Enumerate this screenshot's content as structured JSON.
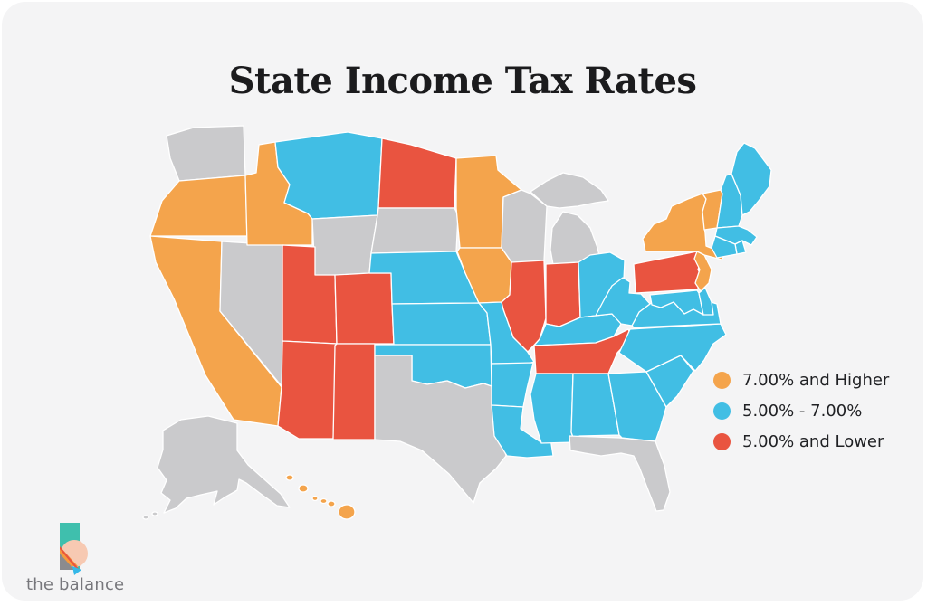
{
  "title": "State Income Tax Rates",
  "legend": {
    "items": [
      {
        "key": "high",
        "label": "7.00% and Higher"
      },
      {
        "key": "mid",
        "label": "5.00% - 7.00%"
      },
      {
        "key": "low",
        "label": "5.00% and Lower"
      }
    ]
  },
  "colors": {
    "high": "#F4A44C",
    "mid": "#41BEE4",
    "low": "#E95440",
    "none": "#CACACC",
    "card_background": "#F4F4F5",
    "state_border": "#FFFFFF",
    "title_text": "#1B1B1D",
    "legend_text": "#202124",
    "logo_text": "#77777C",
    "logo_teal": "#3FBFAD",
    "logo_peach": "#F7C9B2",
    "logo_orange": "#F59A3E",
    "logo_red": "#E9543F",
    "logo_gray": "#8B8B8E",
    "logo_cyan": "#35B8E8"
  },
  "logo": {
    "text": "the balance"
  },
  "map": {
    "states": [
      {
        "id": "WA",
        "name": "Washington",
        "category": "none"
      },
      {
        "id": "OR",
        "name": "Oregon",
        "category": "high"
      },
      {
        "id": "CA",
        "name": "California",
        "category": "high"
      },
      {
        "id": "NV",
        "name": "Nevada",
        "category": "none"
      },
      {
        "id": "ID",
        "name": "Idaho",
        "category": "high"
      },
      {
        "id": "MT",
        "name": "Montana",
        "category": "mid"
      },
      {
        "id": "WY",
        "name": "Wyoming",
        "category": "none"
      },
      {
        "id": "UT",
        "name": "Utah",
        "category": "low"
      },
      {
        "id": "CO",
        "name": "Colorado",
        "category": "low"
      },
      {
        "id": "AZ",
        "name": "Arizona",
        "category": "low"
      },
      {
        "id": "NM",
        "name": "New Mexico",
        "category": "low"
      },
      {
        "id": "ND",
        "name": "North Dakota",
        "category": "low"
      },
      {
        "id": "SD",
        "name": "South Dakota",
        "category": "none"
      },
      {
        "id": "NE",
        "name": "Nebraska",
        "category": "mid"
      },
      {
        "id": "KS",
        "name": "Kansas",
        "category": "mid"
      },
      {
        "id": "OK",
        "name": "Oklahoma",
        "category": "mid"
      },
      {
        "id": "TX",
        "name": "Texas",
        "category": "none"
      },
      {
        "id": "MN",
        "name": "Minnesota",
        "category": "high"
      },
      {
        "id": "IA",
        "name": "Iowa",
        "category": "high"
      },
      {
        "id": "MO",
        "name": "Missouri",
        "category": "mid"
      },
      {
        "id": "AR",
        "name": "Arkansas",
        "category": "mid"
      },
      {
        "id": "LA",
        "name": "Louisiana",
        "category": "mid"
      },
      {
        "id": "WI",
        "name": "Wisconsin",
        "category": "none"
      },
      {
        "id": "IL",
        "name": "Illinois",
        "category": "low"
      },
      {
        "id": "MI",
        "name": "Michigan",
        "category": "none"
      },
      {
        "id": "IN",
        "name": "Indiana",
        "category": "low"
      },
      {
        "id": "OH",
        "name": "Ohio",
        "category": "mid"
      },
      {
        "id": "KY",
        "name": "Kentucky",
        "category": "mid"
      },
      {
        "id": "TN",
        "name": "Tennessee",
        "category": "low"
      },
      {
        "id": "MS",
        "name": "Mississippi",
        "category": "mid"
      },
      {
        "id": "AL",
        "name": "Alabama",
        "category": "mid"
      },
      {
        "id": "GA",
        "name": "Georgia",
        "category": "mid"
      },
      {
        "id": "FL",
        "name": "Florida",
        "category": "none"
      },
      {
        "id": "SC",
        "name": "South Carolina",
        "category": "mid"
      },
      {
        "id": "NC",
        "name": "North Carolina",
        "category": "mid"
      },
      {
        "id": "VA",
        "name": "Virginia",
        "category": "mid"
      },
      {
        "id": "WV",
        "name": "West Virginia",
        "category": "mid"
      },
      {
        "id": "MD",
        "name": "Maryland",
        "category": "mid"
      },
      {
        "id": "DE",
        "name": "Delaware",
        "category": "mid"
      },
      {
        "id": "PA",
        "name": "Pennsylvania",
        "category": "low"
      },
      {
        "id": "NY",
        "name": "New York",
        "category": "high"
      },
      {
        "id": "NJ",
        "name": "New Jersey",
        "category": "high"
      },
      {
        "id": "VT",
        "name": "Vermont",
        "category": "high"
      },
      {
        "id": "NH",
        "name": "New Hampshire",
        "category": "mid"
      },
      {
        "id": "ME",
        "name": "Maine",
        "category": "mid"
      },
      {
        "id": "MA",
        "name": "Massachusetts",
        "category": "mid"
      },
      {
        "id": "RI",
        "name": "Rhode Island",
        "category": "mid"
      },
      {
        "id": "CT",
        "name": "Connecticut",
        "category": "mid"
      },
      {
        "id": "AK",
        "name": "Alaska",
        "category": "none"
      },
      {
        "id": "HI",
        "name": "Hawaii",
        "category": "high"
      }
    ]
  }
}
